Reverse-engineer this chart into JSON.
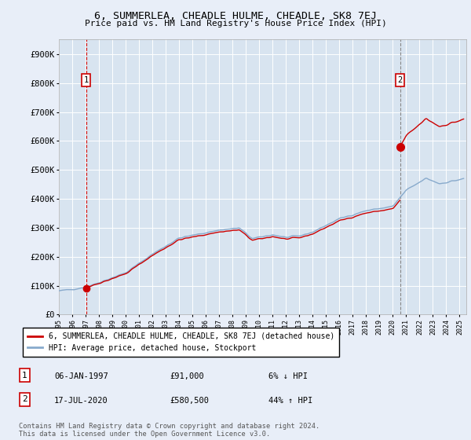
{
  "title": "6, SUMMERLEA, CHEADLE HULME, CHEADLE, SK8 7EJ",
  "subtitle": "Price paid vs. HM Land Registry's House Price Index (HPI)",
  "ylim": [
    0,
    950000
  ],
  "xlim_start": 1995.0,
  "xlim_end": 2025.5,
  "bg_color": "#e8eef8",
  "plot_bg": "#d8e4f0",
  "grid_color": "#ffffff",
  "sale1_x": 1997.03,
  "sale1_y": 91000,
  "sale2_x": 2020.54,
  "sale2_y": 580500,
  "sale_color": "#cc0000",
  "hpi_color": "#88aacc",
  "legend_label_sale": "6, SUMMERLEA, CHEADLE HULME, CHEADLE, SK8 7EJ (detached house)",
  "legend_label_hpi": "HPI: Average price, detached house, Stockport",
  "footer": "Contains HM Land Registry data © Crown copyright and database right 2024.\nThis data is licensed under the Open Government Licence v3.0.",
  "hpi_at_sale1": 96809,
  "hpi_at_sale2": 403125
}
